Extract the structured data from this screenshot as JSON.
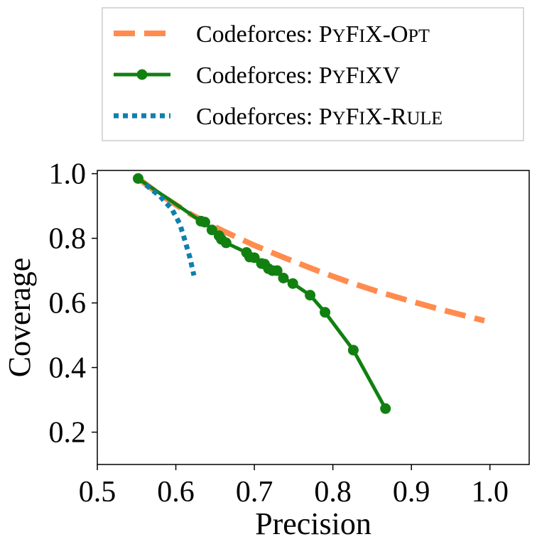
{
  "chart_data": {
    "type": "line",
    "xlabel": "Precision",
    "ylabel": "Coverage",
    "xlim": [
      0.5,
      1.05
    ],
    "ylim": [
      0.1,
      1.01
    ],
    "xticks": [
      0.5,
      0.6,
      0.7,
      0.8,
      0.9,
      1.0
    ],
    "xtick_labels": [
      "0.5",
      "0.6",
      "0.7",
      "0.8",
      "0.9",
      "1.0"
    ],
    "yticks": [
      0.2,
      0.4,
      0.6,
      0.8,
      1.0
    ],
    "ytick_labels": [
      "0.2",
      "0.4",
      "0.6",
      "0.8",
      "1.0"
    ],
    "legend_position": "top-center, above plot",
    "series": [
      {
        "name": "Codeforces: PyFix-Opt",
        "label_parts": [
          [
            "Codeforces: P",
            "big"
          ],
          [
            "Y",
            "sc"
          ],
          [
            "F",
            "big"
          ],
          [
            "I",
            "sc"
          ],
          [
            "X-O",
            "big"
          ],
          [
            "PT",
            "sc"
          ]
        ],
        "color": "#ff8c4e",
        "style": "dashed",
        "x": [
          0.552,
          0.58,
          0.62,
          0.66,
          0.7,
          0.74,
          0.78,
          0.82,
          0.86,
          0.9,
          0.94,
          0.98,
          0.993
        ],
        "y": [
          0.985,
          0.935,
          0.873,
          0.823,
          0.778,
          0.738,
          0.7,
          0.665,
          0.633,
          0.605,
          0.578,
          0.553,
          0.545
        ]
      },
      {
        "name": "Codeforces: PyFixV",
        "label_parts": [
          [
            "Codeforces: P",
            "big"
          ],
          [
            "Y",
            "sc"
          ],
          [
            "F",
            "big"
          ],
          [
            "I",
            "sc"
          ],
          [
            "XV",
            "big"
          ]
        ],
        "color": "#118011",
        "style": "solid-markers",
        "x": [
          0.552,
          0.632,
          0.637,
          0.646,
          0.655,
          0.658,
          0.664,
          0.69,
          0.694,
          0.7,
          0.709,
          0.713,
          0.718,
          0.723,
          0.729,
          0.737,
          0.749,
          0.771,
          0.79,
          0.826,
          0.867
        ],
        "y": [
          0.985,
          0.853,
          0.85,
          0.826,
          0.808,
          0.797,
          0.786,
          0.756,
          0.742,
          0.74,
          0.722,
          0.72,
          0.706,
          0.7,
          0.7,
          0.677,
          0.66,
          0.624,
          0.571,
          0.454,
          0.273
        ]
      },
      {
        "name": "Codeforces: PyFix-Rule",
        "label_parts": [
          [
            "Codeforces: P",
            "big"
          ],
          [
            "Y",
            "sc"
          ],
          [
            "F",
            "big"
          ],
          [
            "I",
            "sc"
          ],
          [
            "X-R",
            "big"
          ],
          [
            "ULE",
            "sc"
          ]
        ],
        "color": "#0f7fae",
        "style": "dotted",
        "x": [
          0.562,
          0.58,
          0.595,
          0.605,
          0.612,
          0.618,
          0.623
        ],
        "y": [
          0.965,
          0.93,
          0.89,
          0.845,
          0.79,
          0.74,
          0.685
        ]
      }
    ]
  }
}
